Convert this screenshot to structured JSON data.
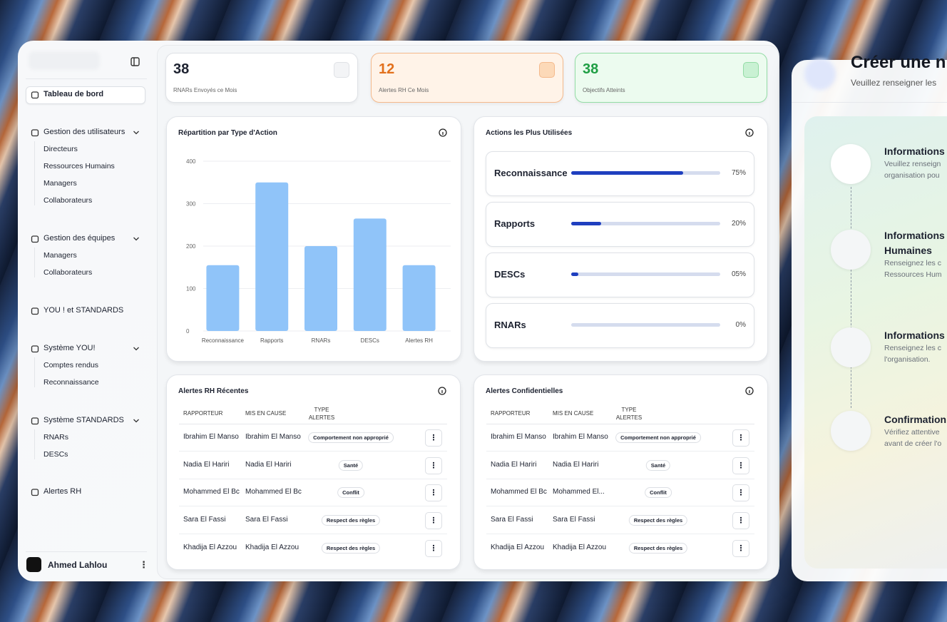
{
  "sidebar": {
    "nav": [
      {
        "label": "Tableau de bord",
        "items": []
      },
      {
        "label": "Gestion des utilisateurs",
        "items": [
          "Directeurs",
          "Ressources Humains",
          "Managers",
          "Collaborateurs"
        ]
      },
      {
        "label": "Gestion des équipes",
        "items": [
          "Managers",
          "Collaborateurs"
        ]
      },
      {
        "label": "YOU ! et STANDARDS",
        "items": []
      },
      {
        "label": "Système YOU!",
        "items": [
          "Comptes rendus",
          "Reconnaissance"
        ]
      },
      {
        "label": "Système STANDARDS",
        "items": [
          "RNARs",
          "DESCs"
        ]
      },
      {
        "label": "Alertes RH",
        "items": []
      }
    ],
    "user": "Ahmed Lahlou"
  },
  "stats": [
    {
      "value": 38,
      "label": "RNARs Envoyés ce Mois"
    },
    {
      "value": 12,
      "label": "Alertes RH Ce Mois"
    },
    {
      "value": 38,
      "label": "Objectifs Atteints"
    }
  ],
  "type_chart": {
    "type": "bar",
    "title": "Répartition par Type d'Action",
    "categories": [
      "Reconnaissance",
      "Rapports",
      "RNARs",
      "DESCs",
      "Alertes RH"
    ],
    "values": [
      155,
      350,
      200,
      265,
      155
    ],
    "color": "#90c4f9",
    "ylim": [
      0,
      400
    ],
    "yticks": [
      0,
      100,
      200,
      300,
      400
    ],
    "grid": true
  },
  "actions": {
    "title": "Actions les Plus Utilisées",
    "categories": [
      "Reconnaissance",
      "Rapports",
      "DESCs",
      "RNARs"
    ],
    "values": [
      75,
      20,
      5,
      0
    ],
    "value_labels": [
      "75%",
      "20%",
      "05%",
      "0%"
    ],
    "xlim": [
      0,
      100
    ],
    "color": "#1f3fbf"
  },
  "tables": [
    {
      "title": "Alertes RH Récentes",
      "columns": [
        "RAPPORTEUR",
        "MIS EN CAUSE",
        "TYPE ALERTES"
      ],
      "rows": [
        [
          "Ibrahim El Manso",
          "Ibrahim El Manso",
          "Comportement non approprié"
        ],
        [
          "Nadia El Hariri",
          "Nadia El Hariri",
          "Santé"
        ],
        [
          "Mohammed El Bc",
          "Mohammed El Bc",
          "Conflit"
        ],
        [
          "Sara El Fassi",
          "Sara El Fassi",
          "Respect des règles"
        ],
        [
          "Khadija El Azzou",
          "Khadija El Azzou",
          "Respect des règles"
        ]
      ]
    },
    {
      "title": "Alertes Confidentielles",
      "columns": [
        "RAPPORTEUR",
        "MIS EN CAUSE",
        "TYPE ALERTES"
      ],
      "rows": [
        [
          "Ibrahim El Manso",
          "Ibrahim El Manso",
          "Comportement non approprié"
        ],
        [
          "Nadia El Hariri",
          "Nadia El Hariri",
          "Santé"
        ],
        [
          "Mohammed El Bc",
          "Mohammed El...",
          "Conflit"
        ],
        [
          "Sara El Fassi",
          "Sara El Fassi",
          "Respect des règles"
        ],
        [
          "Khadija El Azzou",
          "Khadija El Azzou",
          "Respect des règles"
        ]
      ]
    }
  ],
  "form": {
    "title": "Créer une n",
    "subtitle": "Veuillez renseigner les",
    "steps": [
      {
        "title": "Informations",
        "description": [
          "Veuillez renseign",
          "organisation pou"
        ]
      },
      {
        "title": "Informations Humaines",
        "description": [
          "Renseignez les c",
          "Ressources Hum"
        ]
      },
      {
        "title": "Informations",
        "description": [
          "Renseignez les c",
          "l'organisation."
        ]
      },
      {
        "title": "Confirmation",
        "description": [
          "Vérifiez attentive",
          "avant de créer l'o"
        ]
      }
    ]
  }
}
